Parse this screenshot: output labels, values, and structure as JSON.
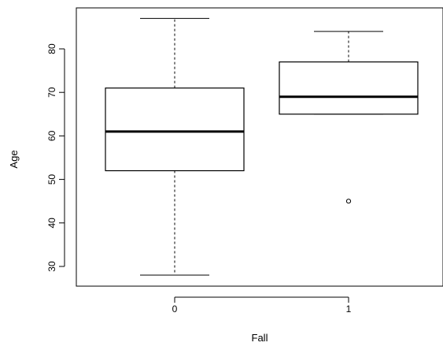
{
  "chart_data": {
    "type": "boxplot",
    "title": "",
    "xlabel": "Fall",
    "ylabel": "Age",
    "categories": [
      "0",
      "1"
    ],
    "boxes": [
      {
        "category": "0",
        "whisker_low": 28,
        "q1": 52,
        "median": 61,
        "q3": 71,
        "whisker_high": 87,
        "outliers": []
      },
      {
        "category": "1",
        "whisker_low": 65,
        "q1": 65,
        "median": 69,
        "q3": 77,
        "whisker_high": 84,
        "outliers": [
          45
        ]
      }
    ],
    "ylim": [
      26,
      89
    ],
    "yticks": [
      30,
      40,
      50,
      60,
      70,
      80
    ],
    "ytick_labels": [
      "30",
      "40",
      "50",
      "60",
      "70",
      "80"
    ],
    "grid": false,
    "legend": "none",
    "colors": {
      "box_fill": "#ffffff",
      "stroke": "#000000"
    }
  }
}
